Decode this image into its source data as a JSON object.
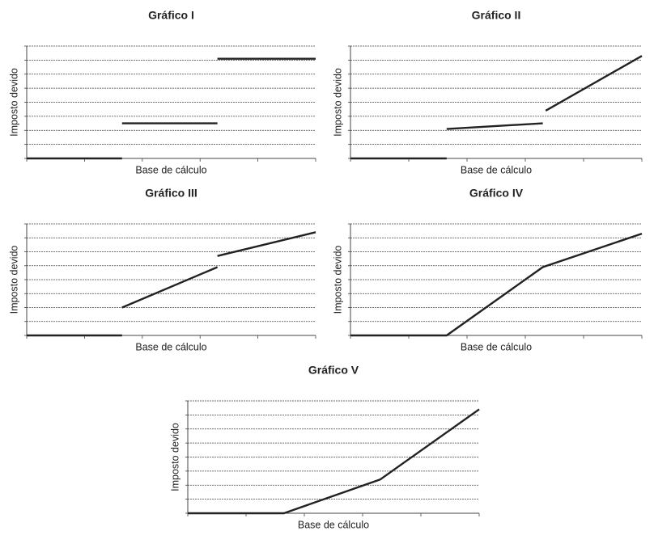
{
  "chart_data": [
    {
      "type": "line",
      "title": "Gráfico I",
      "x_label": "Base de cálculo",
      "y_label": "Imposto devido",
      "color": "#222222",
      "grid": true,
      "x": [
        0,
        1.65,
        null,
        1.65,
        3.3,
        null,
        3.3,
        5
      ],
      "values": [
        0,
        0,
        null,
        2.5,
        2.5,
        null,
        7.1,
        7.1
      ],
      "xlim": [
        0,
        5
      ],
      "xticks": [
        0,
        1,
        2,
        3,
        4,
        5
      ],
      "ylim": [
        0,
        8
      ],
      "yticks": [
        0,
        1,
        2,
        3,
        4,
        5,
        6,
        7,
        8
      ]
    },
    {
      "type": "line",
      "title": "Gráfico II",
      "x_label": "Base de cálculo",
      "y_label": "Imposto devido",
      "color": "#222222",
      "grid": true,
      "x": [
        0,
        1.65,
        null,
        1.65,
        3.3,
        null,
        3.35,
        5
      ],
      "values": [
        0,
        0,
        null,
        2.1,
        2.5,
        null,
        3.4,
        7.3
      ],
      "xlim": [
        0,
        5
      ],
      "xticks": [
        0,
        1,
        2,
        3,
        4,
        5
      ],
      "ylim": [
        0,
        8
      ],
      "yticks": [
        0,
        1,
        2,
        3,
        4,
        5,
        6,
        7,
        8
      ]
    },
    {
      "type": "line",
      "title": "Gráfico III",
      "x_label": "Base de cálculo",
      "y_label": "Imposto devido",
      "color": "#222222",
      "grid": true,
      "x": [
        0,
        1.65,
        null,
        1.65,
        3.3,
        null,
        3.3,
        5
      ],
      "values": [
        0,
        0,
        null,
        2,
        4.9,
        null,
        5.7,
        7.4
      ],
      "xlim": [
        0,
        5
      ],
      "xticks": [
        0,
        1,
        2,
        3,
        4,
        5
      ],
      "ylim": [
        0,
        8
      ],
      "yticks": [
        0,
        1,
        2,
        3,
        4,
        5,
        6,
        7,
        8
      ]
    },
    {
      "type": "line",
      "title": "Gráfico IV",
      "x_label": "Base de cálculo",
      "y_label": "Imposto devido",
      "color": "#222222",
      "grid": true,
      "x": [
        0,
        1.65,
        3.3,
        5
      ],
      "values": [
        0,
        0,
        4.9,
        7.3
      ],
      "xlim": [
        0,
        5
      ],
      "xticks": [
        0,
        1,
        2,
        3,
        4,
        5
      ],
      "ylim": [
        0,
        8
      ],
      "yticks": [
        0,
        1,
        2,
        3,
        4,
        5,
        6,
        7,
        8
      ]
    },
    {
      "type": "line",
      "title": "Gráfico V",
      "x_label": "Base de cálculo",
      "y_label": "Imposto devido",
      "color": "#222222",
      "grid": true,
      "x": [
        0,
        1.65,
        3.3,
        5
      ],
      "values": [
        0,
        0,
        2.4,
        7.4
      ],
      "xlim": [
        0,
        5
      ],
      "xticks": [
        0,
        1,
        2,
        3,
        4,
        5
      ],
      "ylim": [
        0,
        8
      ],
      "yticks": [
        0,
        1,
        2,
        3,
        4,
        5,
        6,
        7,
        8
      ]
    }
  ]
}
